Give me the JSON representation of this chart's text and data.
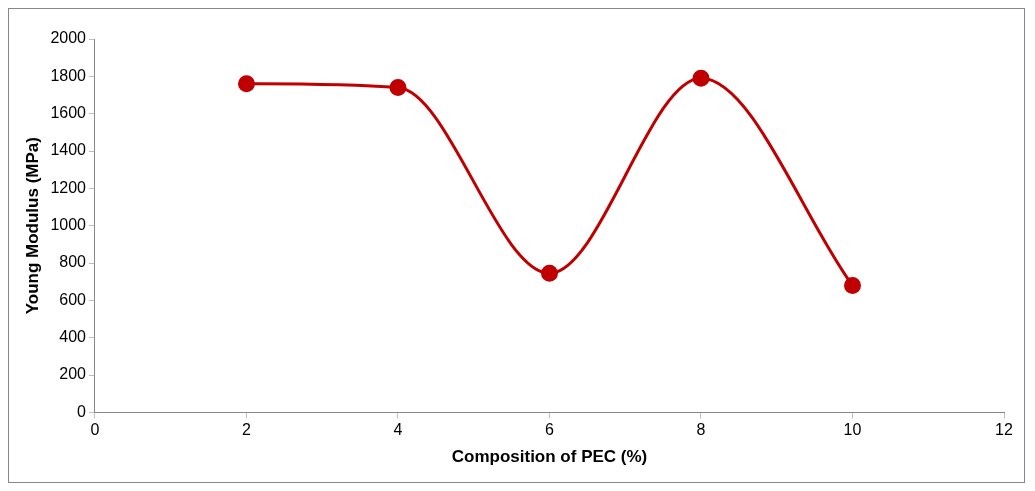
{
  "chart_data": {
    "type": "line",
    "xlabel": "Composition of PEC (%)",
    "ylabel": "Young Modulus (MPa)",
    "x": [
      2,
      4,
      6,
      8,
      10
    ],
    "series": [
      {
        "color": "#c00000",
        "values": [
          1760,
          1740,
          745,
          1790,
          680
        ]
      }
    ],
    "xlim": [
      0,
      12
    ],
    "xticks": [
      0,
      2,
      4,
      6,
      8,
      10,
      12
    ],
    "ylim": [
      0,
      2000
    ],
    "yticks": [
      0,
      200,
      400,
      600,
      800,
      1000,
      1200,
      1400,
      1600,
      1800,
      2000
    ],
    "grid": false,
    "legend": false,
    "marker": "circle",
    "line_style": "solid"
  }
}
